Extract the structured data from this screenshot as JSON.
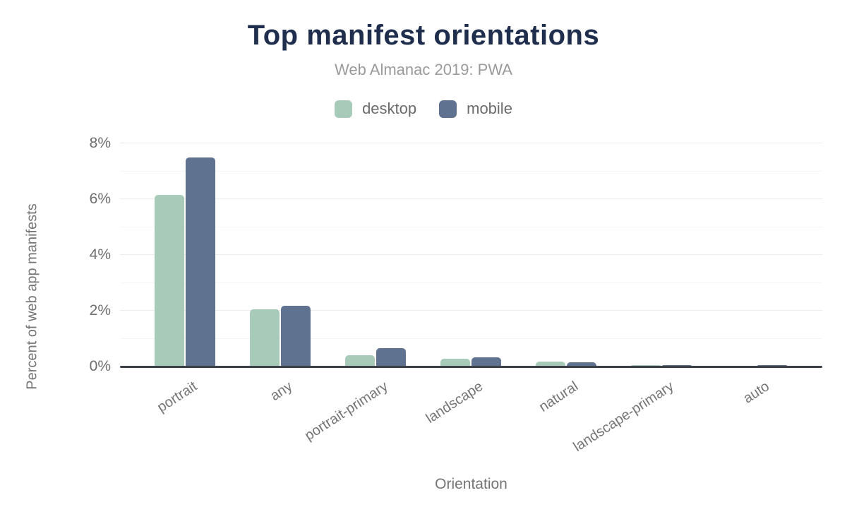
{
  "chart_data": {
    "type": "bar",
    "title": "Top manifest orientations",
    "subtitle": "Web Almanac 2019: PWA",
    "xlabel": "Orientation",
    "ylabel": "Percent of web app manifests",
    "categories": [
      "portrait",
      "any",
      "portrait-primary",
      "landscape",
      "natural",
      "landscape-primary",
      "auto"
    ],
    "series": [
      {
        "name": "desktop",
        "color": "#a8cbb9",
        "values": [
          6.15,
          2.06,
          0.41,
          0.28,
          0.17,
          0.05,
          0.03
        ]
      },
      {
        "name": "mobile",
        "color": "#5f728f",
        "values": [
          7.49,
          2.18,
          0.65,
          0.34,
          0.16,
          0.05,
          0.04
        ]
      }
    ],
    "ylim": [
      0,
      8
    ],
    "yticks": [
      0,
      2,
      4,
      6,
      8
    ],
    "ytick_labels": [
      "0%",
      "2%",
      "4%",
      "6%",
      "8%"
    ],
    "gridline_step": 1,
    "grid": "horizontal",
    "legend_position": "top-center",
    "colors": {
      "title": "#1f2e4d",
      "subtitle": "#9a9a9a",
      "axis_text": "#757575",
      "axis_line": "#3a4149",
      "gridline": "#ececec"
    }
  }
}
